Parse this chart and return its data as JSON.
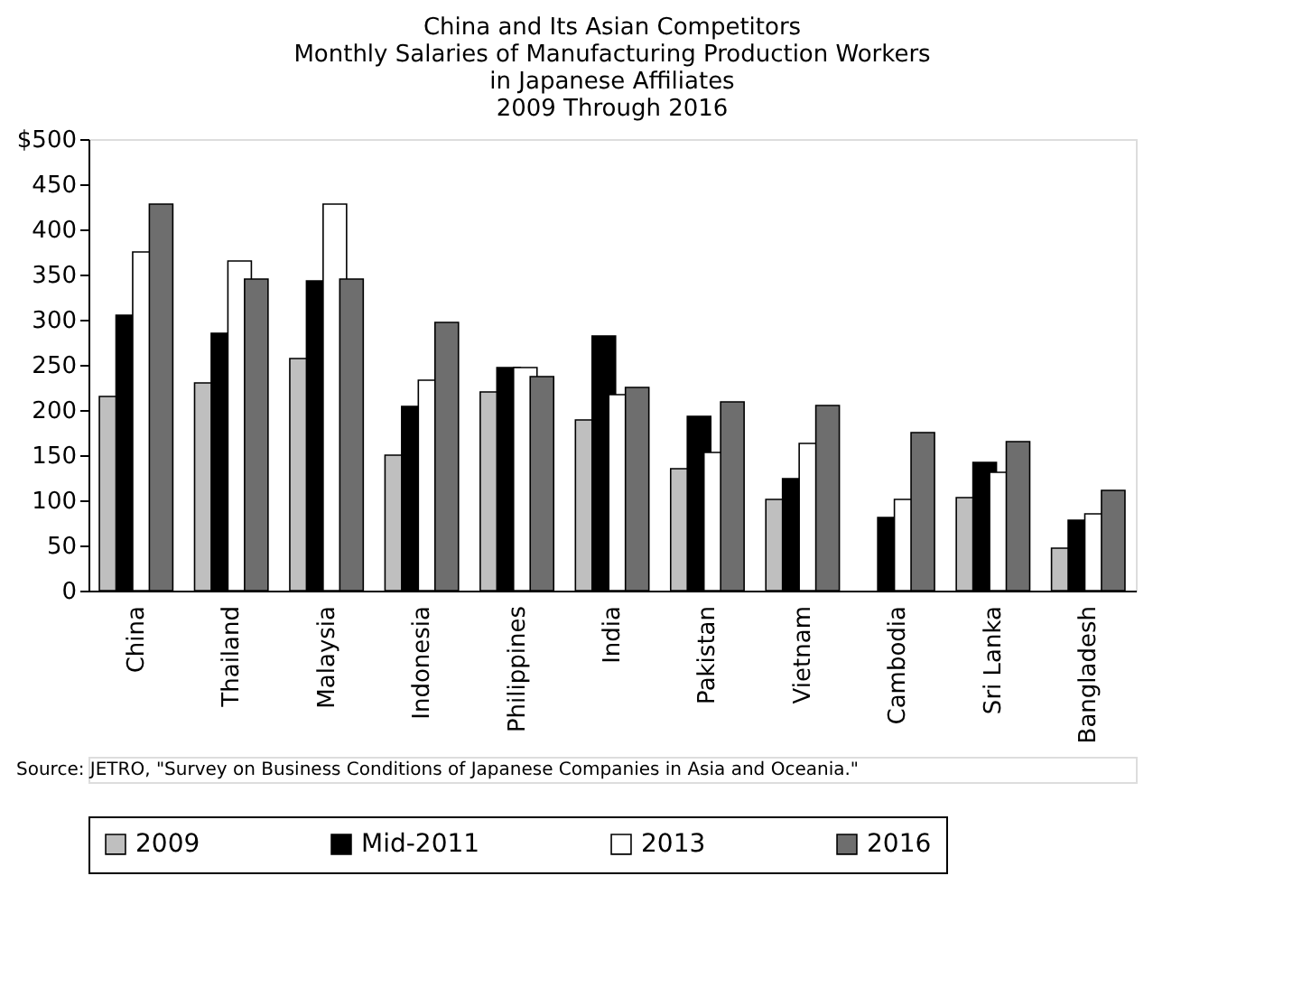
{
  "chart_data": {
    "type": "bar",
    "title": [
      "China and Its Asian Competitors",
      "Monthly Salaries of Manufacturing Production Workers",
      "in Japanese Affiliates",
      "2009 Through 2016"
    ],
    "categories": [
      "China",
      "Thailand",
      "Malaysia",
      "Indonesia",
      "Philippines",
      "India",
      "Pakistan",
      "Vietnam",
      "Cambodia",
      "Sri Lanka",
      "Bangladesh"
    ],
    "series": [
      {
        "name": "2009",
        "color": "#bfbfbf",
        "values": [
          215,
          230,
          257,
          150,
          220,
          189,
          135,
          101,
          null,
          103,
          47
        ]
      },
      {
        "name": "Mid-2011",
        "color": "#000000",
        "values": [
          305,
          285,
          343,
          204,
          247,
          282,
          193,
          124,
          81,
          142,
          78
        ]
      },
      {
        "name": "2013",
        "color": "#ffffff",
        "values": [
          375,
          365,
          428,
          233,
          247,
          217,
          153,
          163,
          101,
          131,
          85
        ]
      },
      {
        "name": "2016",
        "color": "#6e6e6e",
        "values": [
          428,
          345,
          345,
          297,
          237,
          225,
          209,
          205,
          175,
          165,
          111
        ]
      }
    ],
    "ylim": [
      0,
      500
    ],
    "yticks": [
      0,
      50,
      100,
      150,
      200,
      250,
      300,
      350,
      400,
      450,
      {
        "value": 500,
        "label": "$500"
      }
    ],
    "grid": false,
    "legend": "bottom",
    "annotations": [
      "Source: JETRO, \"Survey on Business Conditions of Japanese Companies in Asia and Oceania.\""
    ]
  }
}
